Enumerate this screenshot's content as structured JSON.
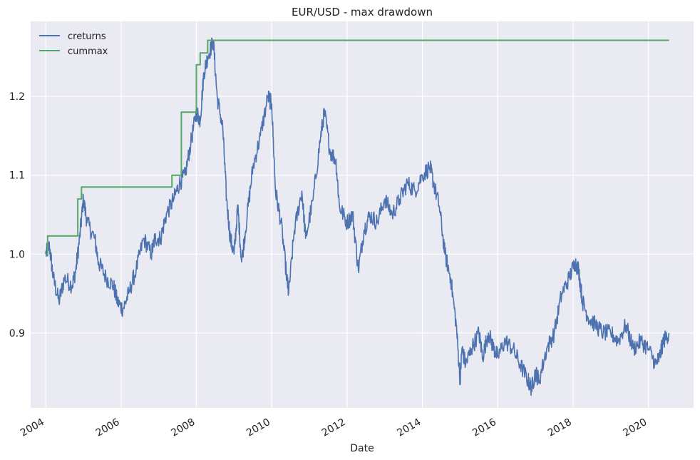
{
  "chart_data": {
    "type": "line",
    "title": "EUR/USD - max drawdown",
    "xlabel": "Date",
    "ylabel": "",
    "xlim": [
      2003.6,
      2021.2
    ],
    "ylim": [
      0.805,
      1.295
    ],
    "grid": true,
    "legend": "top-left",
    "background": "#EAEAF2",
    "x_ticks": [
      2004,
      2006,
      2008,
      2010,
      2012,
      2014,
      2016,
      2018,
      2020
    ],
    "x_tick_labels": [
      "2004",
      "2006",
      "2008",
      "2010",
      "2012",
      "2014",
      "2016",
      "2018",
      "2020"
    ],
    "y_ticks": [
      0.9,
      1.0,
      1.1,
      1.2
    ],
    "y_tick_labels": [
      "0.9",
      "1.0",
      "1.1",
      "1.2"
    ],
    "series": [
      {
        "name": "creturns",
        "color": "#4C72B0",
        "x": [
          2004.0,
          2004.1,
          2004.2,
          2004.35,
          2004.5,
          2004.7,
          2004.8,
          2004.9,
          2005.0,
          2005.1,
          2005.3,
          2005.4,
          2005.6,
          2005.8,
          2005.9,
          2006.05,
          2006.2,
          2006.4,
          2006.6,
          2006.8,
          2006.9,
          2007.05,
          2007.2,
          2007.4,
          2007.55,
          2007.7,
          2007.85,
          2008.0,
          2008.1,
          2008.2,
          2008.3,
          2008.45,
          2008.55,
          2008.7,
          2008.8,
          2008.9,
          2009.0,
          2009.1,
          2009.2,
          2009.35,
          2009.5,
          2009.7,
          2009.9,
          2010.0,
          2010.1,
          2010.25,
          2010.4,
          2010.45,
          2010.6,
          2010.8,
          2010.9,
          2011.1,
          2011.3,
          2011.4,
          2011.55,
          2011.7,
          2011.8,
          2012.0,
          2012.15,
          2012.3,
          2012.45,
          2012.6,
          2012.8,
          2013.0,
          2013.2,
          2013.4,
          2013.6,
          2013.8,
          2014.0,
          2014.2,
          2014.3,
          2014.45,
          2014.6,
          2014.75,
          2014.9,
          2015.0,
          2015.05,
          2015.15,
          2015.3,
          2015.5,
          2015.6,
          2015.75,
          2015.9,
          2016.0,
          2016.2,
          2016.4,
          2016.6,
          2016.8,
          2016.9,
          2017.0,
          2017.1,
          2017.3,
          2017.5,
          2017.7,
          2017.9,
          2018.05,
          2018.15,
          2018.25,
          2018.4,
          2018.6,
          2018.8,
          2019.0,
          2019.2,
          2019.4,
          2019.6,
          2019.8,
          2020.0,
          2020.2,
          2020.3,
          2020.4,
          2020.55
        ],
        "y": [
          1.0,
          1.01,
          0.97,
          0.94,
          0.97,
          0.96,
          0.98,
          1.02,
          1.07,
          1.04,
          1.02,
          0.99,
          0.97,
          0.96,
          0.94,
          0.93,
          0.95,
          0.98,
          1.02,
          1.0,
          1.02,
          1.02,
          1.05,
          1.07,
          1.09,
          1.1,
          1.14,
          1.18,
          1.17,
          1.23,
          1.25,
          1.27,
          1.2,
          1.16,
          1.07,
          1.02,
          1.0,
          1.06,
          0.99,
          1.05,
          1.11,
          1.15,
          1.2,
          1.19,
          1.08,
          1.04,
          0.97,
          0.95,
          1.03,
          1.08,
          1.02,
          1.07,
          1.15,
          1.18,
          1.13,
          1.12,
          1.06,
          1.04,
          1.05,
          0.98,
          1.03,
          1.05,
          1.04,
          1.07,
          1.05,
          1.07,
          1.09,
          1.08,
          1.1,
          1.11,
          1.09,
          1.06,
          1.0,
          0.97,
          0.91,
          0.84,
          0.88,
          0.86,
          0.88,
          0.9,
          0.87,
          0.9,
          0.88,
          0.87,
          0.89,
          0.88,
          0.86,
          0.84,
          0.83,
          0.85,
          0.84,
          0.88,
          0.9,
          0.95,
          0.97,
          0.99,
          0.98,
          0.94,
          0.92,
          0.91,
          0.9,
          0.9,
          0.89,
          0.91,
          0.88,
          0.89,
          0.88,
          0.86,
          0.87,
          0.89,
          0.9
        ]
      },
      {
        "name": "cummax",
        "color": "#55A868",
        "x": [
          2004.0,
          2004.05,
          2004.05,
          2004.85,
          2004.85,
          2004.95,
          2004.95,
          2007.35,
          2007.35,
          2007.6,
          2007.6,
          2008.0,
          2008.0,
          2008.1,
          2008.1,
          2008.3,
          2008.3,
          2020.55
        ],
        "y": [
          1.0,
          1.0,
          1.023,
          1.023,
          1.07,
          1.07,
          1.085,
          1.085,
          1.1,
          1.1,
          1.18,
          1.18,
          1.24,
          1.24,
          1.255,
          1.255,
          1.271,
          1.271
        ]
      }
    ]
  }
}
